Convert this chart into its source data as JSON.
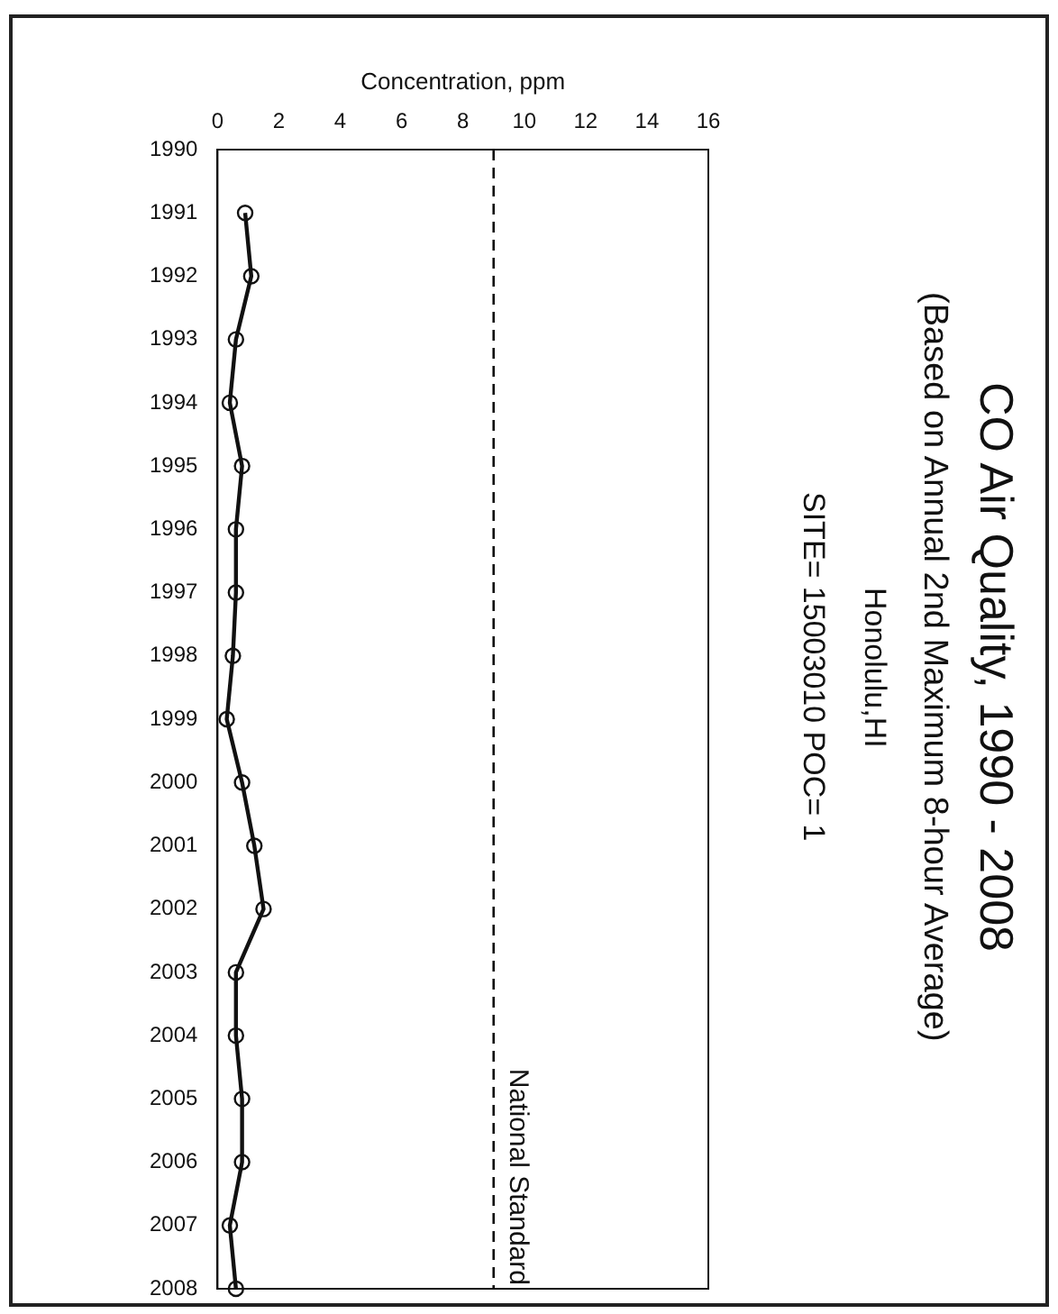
{
  "chart_data": {
    "type": "line",
    "orientation": "horizontal",
    "title": "CO Air Quality, 1990 - 2008",
    "subtitle": "(Based on Annual 2nd Maximum 8-hour Average)",
    "annotations": [
      "Honolulu,HI",
      "SITE= 15003010 POC= 1"
    ],
    "xlabel": "Concentration, ppm",
    "categories": [
      "1990",
      "1991",
      "1992",
      "1993",
      "1994",
      "1995",
      "1996",
      "1997",
      "1998",
      "1999",
      "2000",
      "2001",
      "2002",
      "2003",
      "2004",
      "2005",
      "2006",
      "2007",
      "2008"
    ],
    "series": [
      {
        "color": "#111111",
        "values": [
          null,
          0.9,
          1.1,
          0.6,
          0.4,
          0.8,
          0.6,
          0.6,
          0.5,
          0.3,
          0.8,
          1.2,
          1.5,
          0.6,
          0.6,
          0.8,
          0.8,
          0.4,
          0.6
        ]
      }
    ],
    "xlim": [
      0,
      16
    ],
    "xticks": [
      0,
      2,
      4,
      6,
      8,
      10,
      12,
      14,
      16
    ],
    "grid": false,
    "legend": false,
    "marker": "circle",
    "line_style": "solid",
    "ref_lines": [
      {
        "axis": "x",
        "value": 9,
        "label": "National Standard",
        "line_style": "dashed",
        "color": "#111111"
      }
    ]
  }
}
